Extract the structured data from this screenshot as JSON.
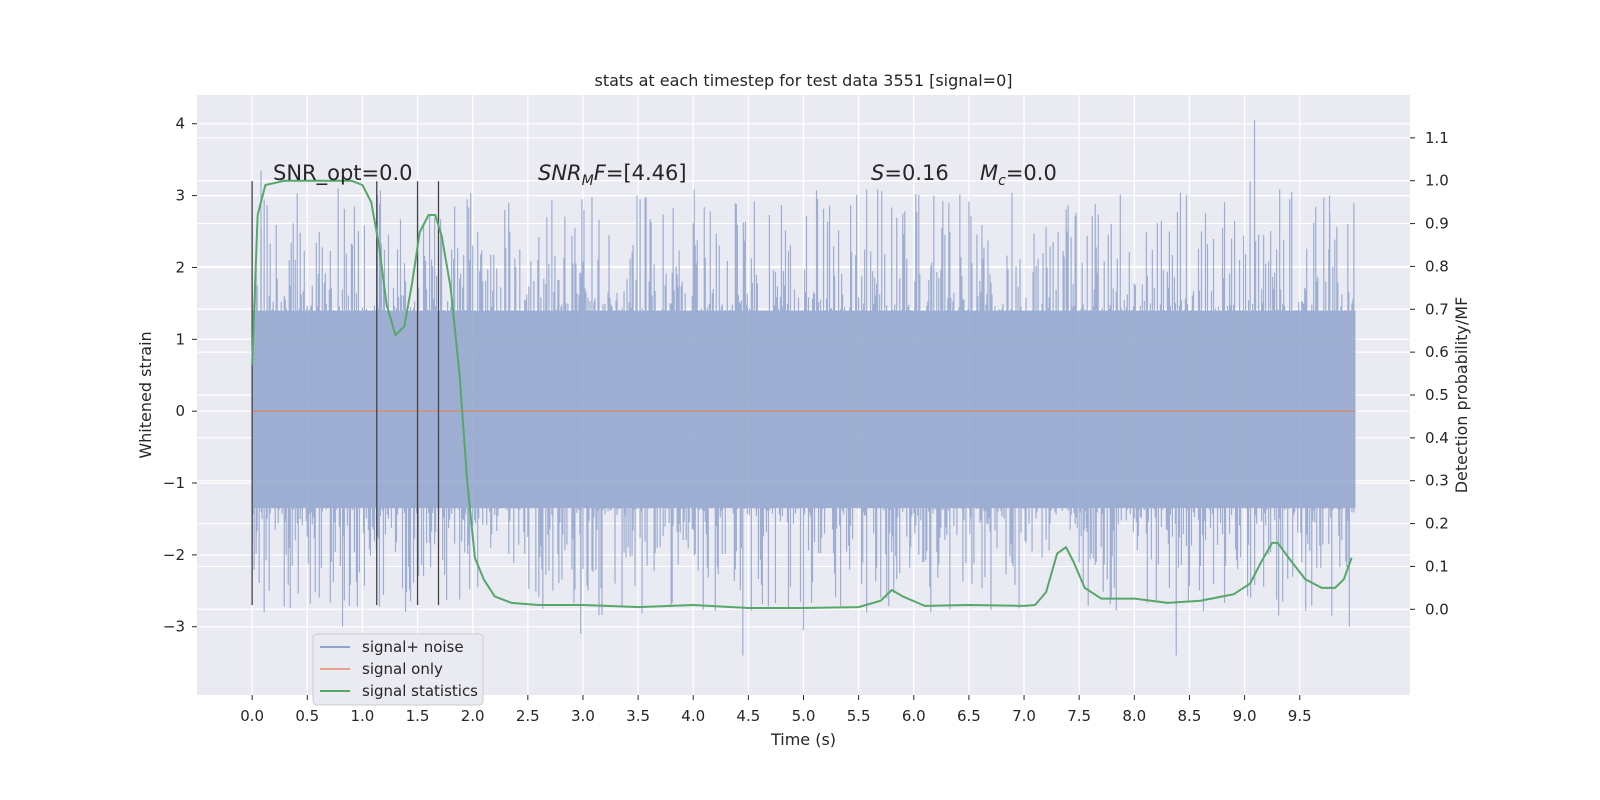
{
  "chart_data": {
    "type": "line",
    "title": "stats at each timestep for test data 3551 [signal=0]",
    "xlabel": "Time (s)",
    "ylabel": "Whitened strain",
    "ylabel_right": "Detection probability/MF",
    "xlim": [
      -0.5,
      10.5
    ],
    "ylim": [
      -3.95,
      4.4
    ],
    "ylim_right": [
      -0.2,
      1.2
    ],
    "x_ticks": [
      "0.0",
      "0.5",
      "1.0",
      "1.5",
      "2.0",
      "2.5",
      "3.0",
      "3.5",
      "4.0",
      "4.5",
      "5.0",
      "5.5",
      "6.0",
      "6.5",
      "7.0",
      "7.5",
      "8.0",
      "8.5",
      "9.0",
      "9.5"
    ],
    "y_ticks": [
      "−3",
      "−2",
      "−1",
      "0",
      "1",
      "2",
      "3",
      "4"
    ],
    "y_ticks_right": [
      "0.0",
      "0.1",
      "0.2",
      "0.3",
      "0.4",
      "0.5",
      "0.6",
      "0.7",
      "0.8",
      "0.9",
      "1.0",
      "1.1"
    ],
    "grid": true,
    "legend_position": "lower-left",
    "annotations": {
      "snr_opt": "SNR_opt=0.0",
      "snr_mf_label": "SNR",
      "snr_mf_sub": "M",
      "snr_mf_var": "F",
      "snr_mf_value": "=[4.46]",
      "s_label": "S",
      "s_value": "=0.16",
      "mc_label": "M",
      "mc_sub": "c",
      "mc_value": "=0.0"
    },
    "vertical_markers_x": [
      0.0,
      1.13,
      1.5,
      1.69
    ],
    "vertical_markers_yrange": [
      -2.7,
      3.2
    ],
    "series": [
      {
        "name": "signal+ noise",
        "color": "#8fa3cc",
        "envelope_core": [
          -1.35,
          1.4
        ],
        "x_range": [
          0.0,
          10.0
        ],
        "notable_peaks": [
          {
            "x": 0.08,
            "y": 3.35
          },
          {
            "x": 0.78,
            "y": 3.1
          },
          {
            "x": 1.95,
            "y": 2.95
          },
          {
            "x": 9.05,
            "y": 3.2
          },
          {
            "x": 9.09,
            "y": 4.05
          },
          {
            "x": 9.77,
            "y": 3.0
          },
          {
            "x": 4.45,
            "y": -3.4
          },
          {
            "x": 8.38,
            "y": -3.4
          },
          {
            "x": 2.98,
            "y": -3.1
          },
          {
            "x": 5.0,
            "y": -3.05
          },
          {
            "x": 0.82,
            "y": -3.0
          },
          {
            "x": 9.95,
            "y": -3.0
          }
        ]
      },
      {
        "name": "signal only",
        "color": "#dd8452",
        "y_constant": 0.0,
        "x_range": [
          0.0,
          10.0
        ]
      },
      {
        "name": "signal statistics",
        "color": "#55a868",
        "x": [
          0.0,
          0.05,
          0.12,
          0.3,
          0.6,
          0.9,
          1.0,
          1.08,
          1.15,
          1.22,
          1.3,
          1.38,
          1.45,
          1.52,
          1.6,
          1.66,
          1.72,
          1.8,
          1.88,
          1.95,
          2.02,
          2.1,
          2.2,
          2.35,
          2.6,
          3.0,
          3.5,
          4.0,
          4.5,
          5.0,
          5.5,
          5.7,
          5.8,
          5.9,
          6.1,
          6.5,
          7.0,
          7.1,
          7.2,
          7.3,
          7.38,
          7.45,
          7.55,
          7.7,
          8.0,
          8.3,
          8.6,
          8.9,
          9.05,
          9.15,
          9.25,
          9.3,
          9.4,
          9.55,
          9.7,
          9.82,
          9.9,
          9.97
        ],
        "values": [
          0.57,
          0.92,
          0.99,
          1.0,
          1.0,
          1.0,
          0.99,
          0.95,
          0.85,
          0.71,
          0.64,
          0.66,
          0.76,
          0.88,
          0.92,
          0.92,
          0.87,
          0.75,
          0.55,
          0.3,
          0.12,
          0.07,
          0.03,
          0.015,
          0.01,
          0.01,
          0.005,
          0.01,
          0.003,
          0.003,
          0.005,
          0.02,
          0.045,
          0.03,
          0.008,
          0.01,
          0.008,
          0.01,
          0.04,
          0.13,
          0.145,
          0.11,
          0.05,
          0.025,
          0.025,
          0.015,
          0.02,
          0.035,
          0.06,
          0.11,
          0.155,
          0.155,
          0.12,
          0.07,
          0.05,
          0.05,
          0.07,
          0.12
        ]
      }
    ]
  }
}
